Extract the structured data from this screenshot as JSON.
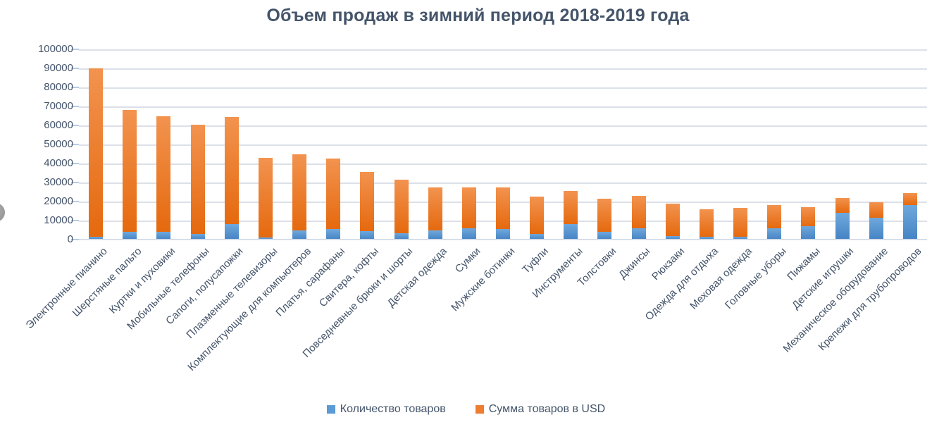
{
  "title": "Объем продаж в зимний период 2018-2019 года",
  "chart_data": {
    "type": "bar",
    "stacked": true,
    "title": "Объем продаж в зимний период 2018-2019 года",
    "categories": [
      "Электронные пианино",
      "Шерстяные пальто",
      "Куртки и пуховики",
      "Мобильные телефоны",
      "Сапоги, полусапожки",
      "Плазменные телевизоры",
      "Комплектующие для компьютеров",
      "Платья, сарафаны",
      "Свитера, кофты",
      "Повседневные брюки и шорты",
      "Детская одежда",
      "Сумки",
      "Мужские ботинки",
      "Туфли",
      "Инструменты",
      "Толстовки",
      "Джинсы",
      "Рюкзаки",
      "Одежда для отдыха",
      "Меховая одежда",
      "Головные уборы",
      "Пижамы",
      "Детские игрушки",
      "Механическое оборудование",
      "Крепежи для трубопроводов"
    ],
    "series": [
      {
        "name": "Количество товаров",
        "color": "#5B9BD5",
        "values": [
          1500,
          4000,
          4000,
          3000,
          8000,
          1200,
          5000,
          5500,
          4500,
          3500,
          5000,
          6000,
          5500,
          3000,
          8000,
          4000,
          6000,
          2000,
          1500,
          1500,
          6000,
          7000,
          14000,
          11500,
          18000
        ]
      },
      {
        "name": "Сумма товаров в USD",
        "color": "#ED7D31",
        "values": [
          88500,
          64000,
          61000,
          57500,
          56500,
          41800,
          40000,
          37000,
          31000,
          28000,
          22500,
          21500,
          22000,
          19500,
          17500,
          17500,
          17000,
          17000,
          14500,
          15000,
          12000,
          10000,
          8000,
          8000,
          6500
        ]
      }
    ],
    "stack_totals": [
      90000,
      68000,
      65000,
      60500,
      64500,
      43000,
      45000,
      42500,
      35500,
      31500,
      27500,
      27500,
      27500,
      22500,
      25500,
      21500,
      23000,
      19000,
      16000,
      16500,
      18000,
      17000,
      22000,
      19500,
      24500
    ],
    "ylim": [
      0,
      100000
    ],
    "yticks": [
      0,
      10000,
      20000,
      30000,
      40000,
      50000,
      60000,
      70000,
      80000,
      90000,
      100000
    ],
    "grid": true,
    "legend_position": "bottom",
    "xlabel": "",
    "ylabel": ""
  },
  "style": {
    "title_color": "#44546A",
    "axis_label_color": "#44546A",
    "legend_text_color": "#44546A",
    "gridline_color": "#DCE0E8",
    "axis_line_color": "#D6DEEA",
    "tick_color": "#B9CBE3",
    "blue_gradient_top": "#6FA8DC",
    "blue_gradient_bottom": "#4583C4",
    "orange_gradient_top": "#F2934F",
    "orange_gradient_bottom": "#E5690E"
  }
}
